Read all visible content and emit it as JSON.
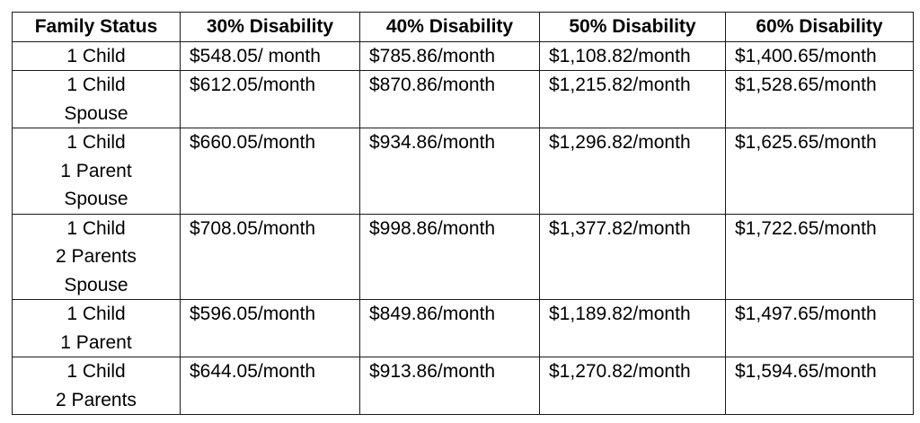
{
  "table": {
    "headers": [
      "Family Status",
      "30% Disability",
      "40% Disability",
      "50% Disability",
      "60% Disability"
    ],
    "rows": [
      {
        "status": [
          "1 Child"
        ],
        "values": [
          "$548.05/ month",
          "$785.86/month",
          "$1,108.82/month",
          "$1,400.65/month"
        ]
      },
      {
        "status": [
          "1 Child",
          "Spouse"
        ],
        "values": [
          "$612.05/month",
          "$870.86/month",
          "$1,215.82/month",
          "$1,528.65/month"
        ]
      },
      {
        "status": [
          "1 Child",
          "1 Parent",
          "Spouse"
        ],
        "values": [
          "$660.05/month",
          "$934.86/month",
          "$1,296.82/month",
          "$1,625.65/month"
        ]
      },
      {
        "status": [
          "1 Child",
          "2 Parents",
          "Spouse"
        ],
        "values": [
          "$708.05/month",
          "$998.86/month",
          "$1,377.82/month",
          "$1,722.65/month"
        ]
      },
      {
        "status": [
          "1 Child",
          "1 Parent"
        ],
        "values": [
          "$596.05/month",
          "$849.86/month",
          "$1,189.82/month",
          "$1,497.65/month"
        ]
      },
      {
        "status": [
          "1 Child",
          "2 Parents"
        ],
        "values": [
          "$644.05/month",
          "$913.86/month",
          "$1,270.82/month",
          "$1,594.65/month"
        ]
      }
    ]
  }
}
